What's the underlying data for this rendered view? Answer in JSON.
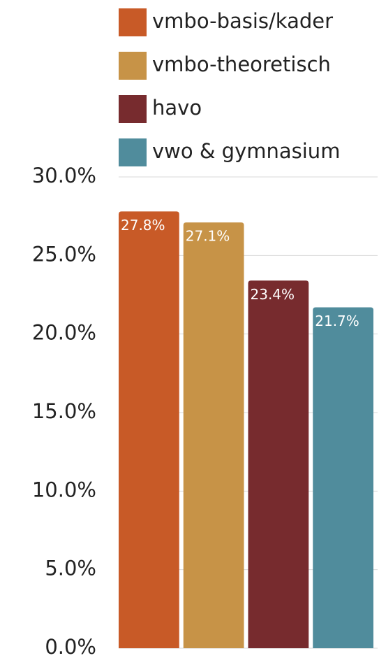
{
  "chart_data": {
    "type": "bar",
    "categories": [
      null
    ],
    "series": [
      {
        "name": "vmbo-basis/kader",
        "color": "#c85a27",
        "values": [
          27.8
        ],
        "value_labels": [
          "27.8%"
        ]
      },
      {
        "name": "vmbo-theoretisch",
        "color": "#c79347",
        "values": [
          27.1
        ],
        "value_labels": [
          "27.1%"
        ]
      },
      {
        "name": "havo",
        "color": "#772b2e",
        "values": [
          23.4
        ],
        "value_labels": [
          "23.4%"
        ]
      },
      {
        "name": "vwo & gymnasium",
        "color": "#508c9c",
        "values": [
          21.7
        ],
        "value_labels": [
          "21.7%"
        ]
      }
    ],
    "ylim": [
      0,
      30
    ],
    "yticks": [
      {
        "value": 0,
        "label": "0.0%"
      },
      {
        "value": 5,
        "label": "5.0%"
      },
      {
        "value": 10,
        "label": "10.0%"
      },
      {
        "value": 15,
        "label": "15.0%"
      },
      {
        "value": 20,
        "label": "20.0%"
      },
      {
        "value": 25,
        "label": "25.0%"
      },
      {
        "value": 30,
        "label": "30.0%"
      }
    ],
    "grid": true
  }
}
